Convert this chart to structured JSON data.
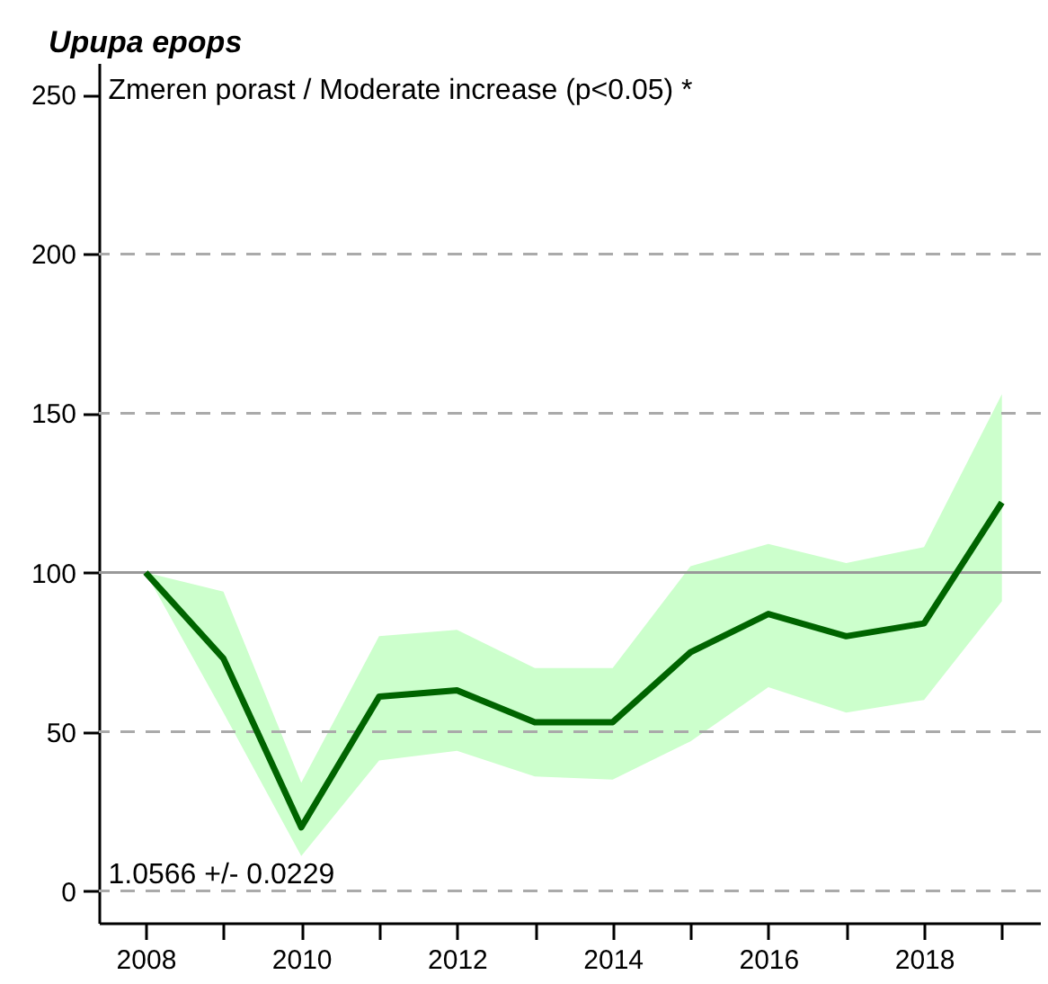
{
  "chart_data": {
    "type": "line",
    "title": "Upupa epops",
    "annotations": [
      {
        "text": "Zmeren porast / Moderate increase (p<0.05) *"
      },
      {
        "text": "1.0566 +/- 0.0229"
      }
    ],
    "x": [
      2008,
      2009,
      2010,
      2011,
      2012,
      2013,
      2014,
      2015,
      2016,
      2017,
      2018,
      2019
    ],
    "series": [
      {
        "color": "#006400",
        "values": [
          100,
          73,
          20,
          61,
          63,
          53,
          53,
          75,
          87,
          80,
          84,
          122
        ],
        "lower": [
          100,
          56,
          11,
          41,
          44,
          36,
          35,
          47,
          64,
          56,
          60,
          91
        ],
        "upper": [
          100,
          94,
          34,
          80,
          82,
          70,
          70,
          102,
          109,
          103,
          108,
          156
        ]
      }
    ],
    "xlim": [
      2007.4,
      2019.5
    ],
    "xticks": [
      2008,
      {
        "value": 2009,
        "label": null
      },
      2010,
      {
        "value": 2011,
        "label": null
      },
      2012,
      {
        "value": 2013,
        "label": null
      },
      2014,
      {
        "value": 2015,
        "label": null
      },
      2016,
      {
        "value": 2017,
        "label": null
      },
      2018,
      {
        "value": 2019,
        "label": null
      }
    ],
    "ylim": [
      -10,
      260
    ],
    "yticks": [
      0,
      50,
      100,
      150,
      200,
      250
    ],
    "grid": false,
    "marker": "none",
    "line_style": "solid",
    "ref_lines": [
      {
        "axis": "y",
        "value": 0,
        "line_style": "dashed",
        "color": "#aaaaaa"
      },
      {
        "axis": "y",
        "value": 50,
        "line_style": "dashed",
        "color": "#aaaaaa"
      },
      {
        "axis": "y",
        "value": 100,
        "line_style": "solid",
        "color": "#999999"
      },
      {
        "axis": "y",
        "value": 150,
        "line_style": "dashed",
        "color": "#aaaaaa"
      },
      {
        "axis": "y",
        "value": 200,
        "line_style": "dashed",
        "color": "#aaaaaa"
      }
    ]
  }
}
